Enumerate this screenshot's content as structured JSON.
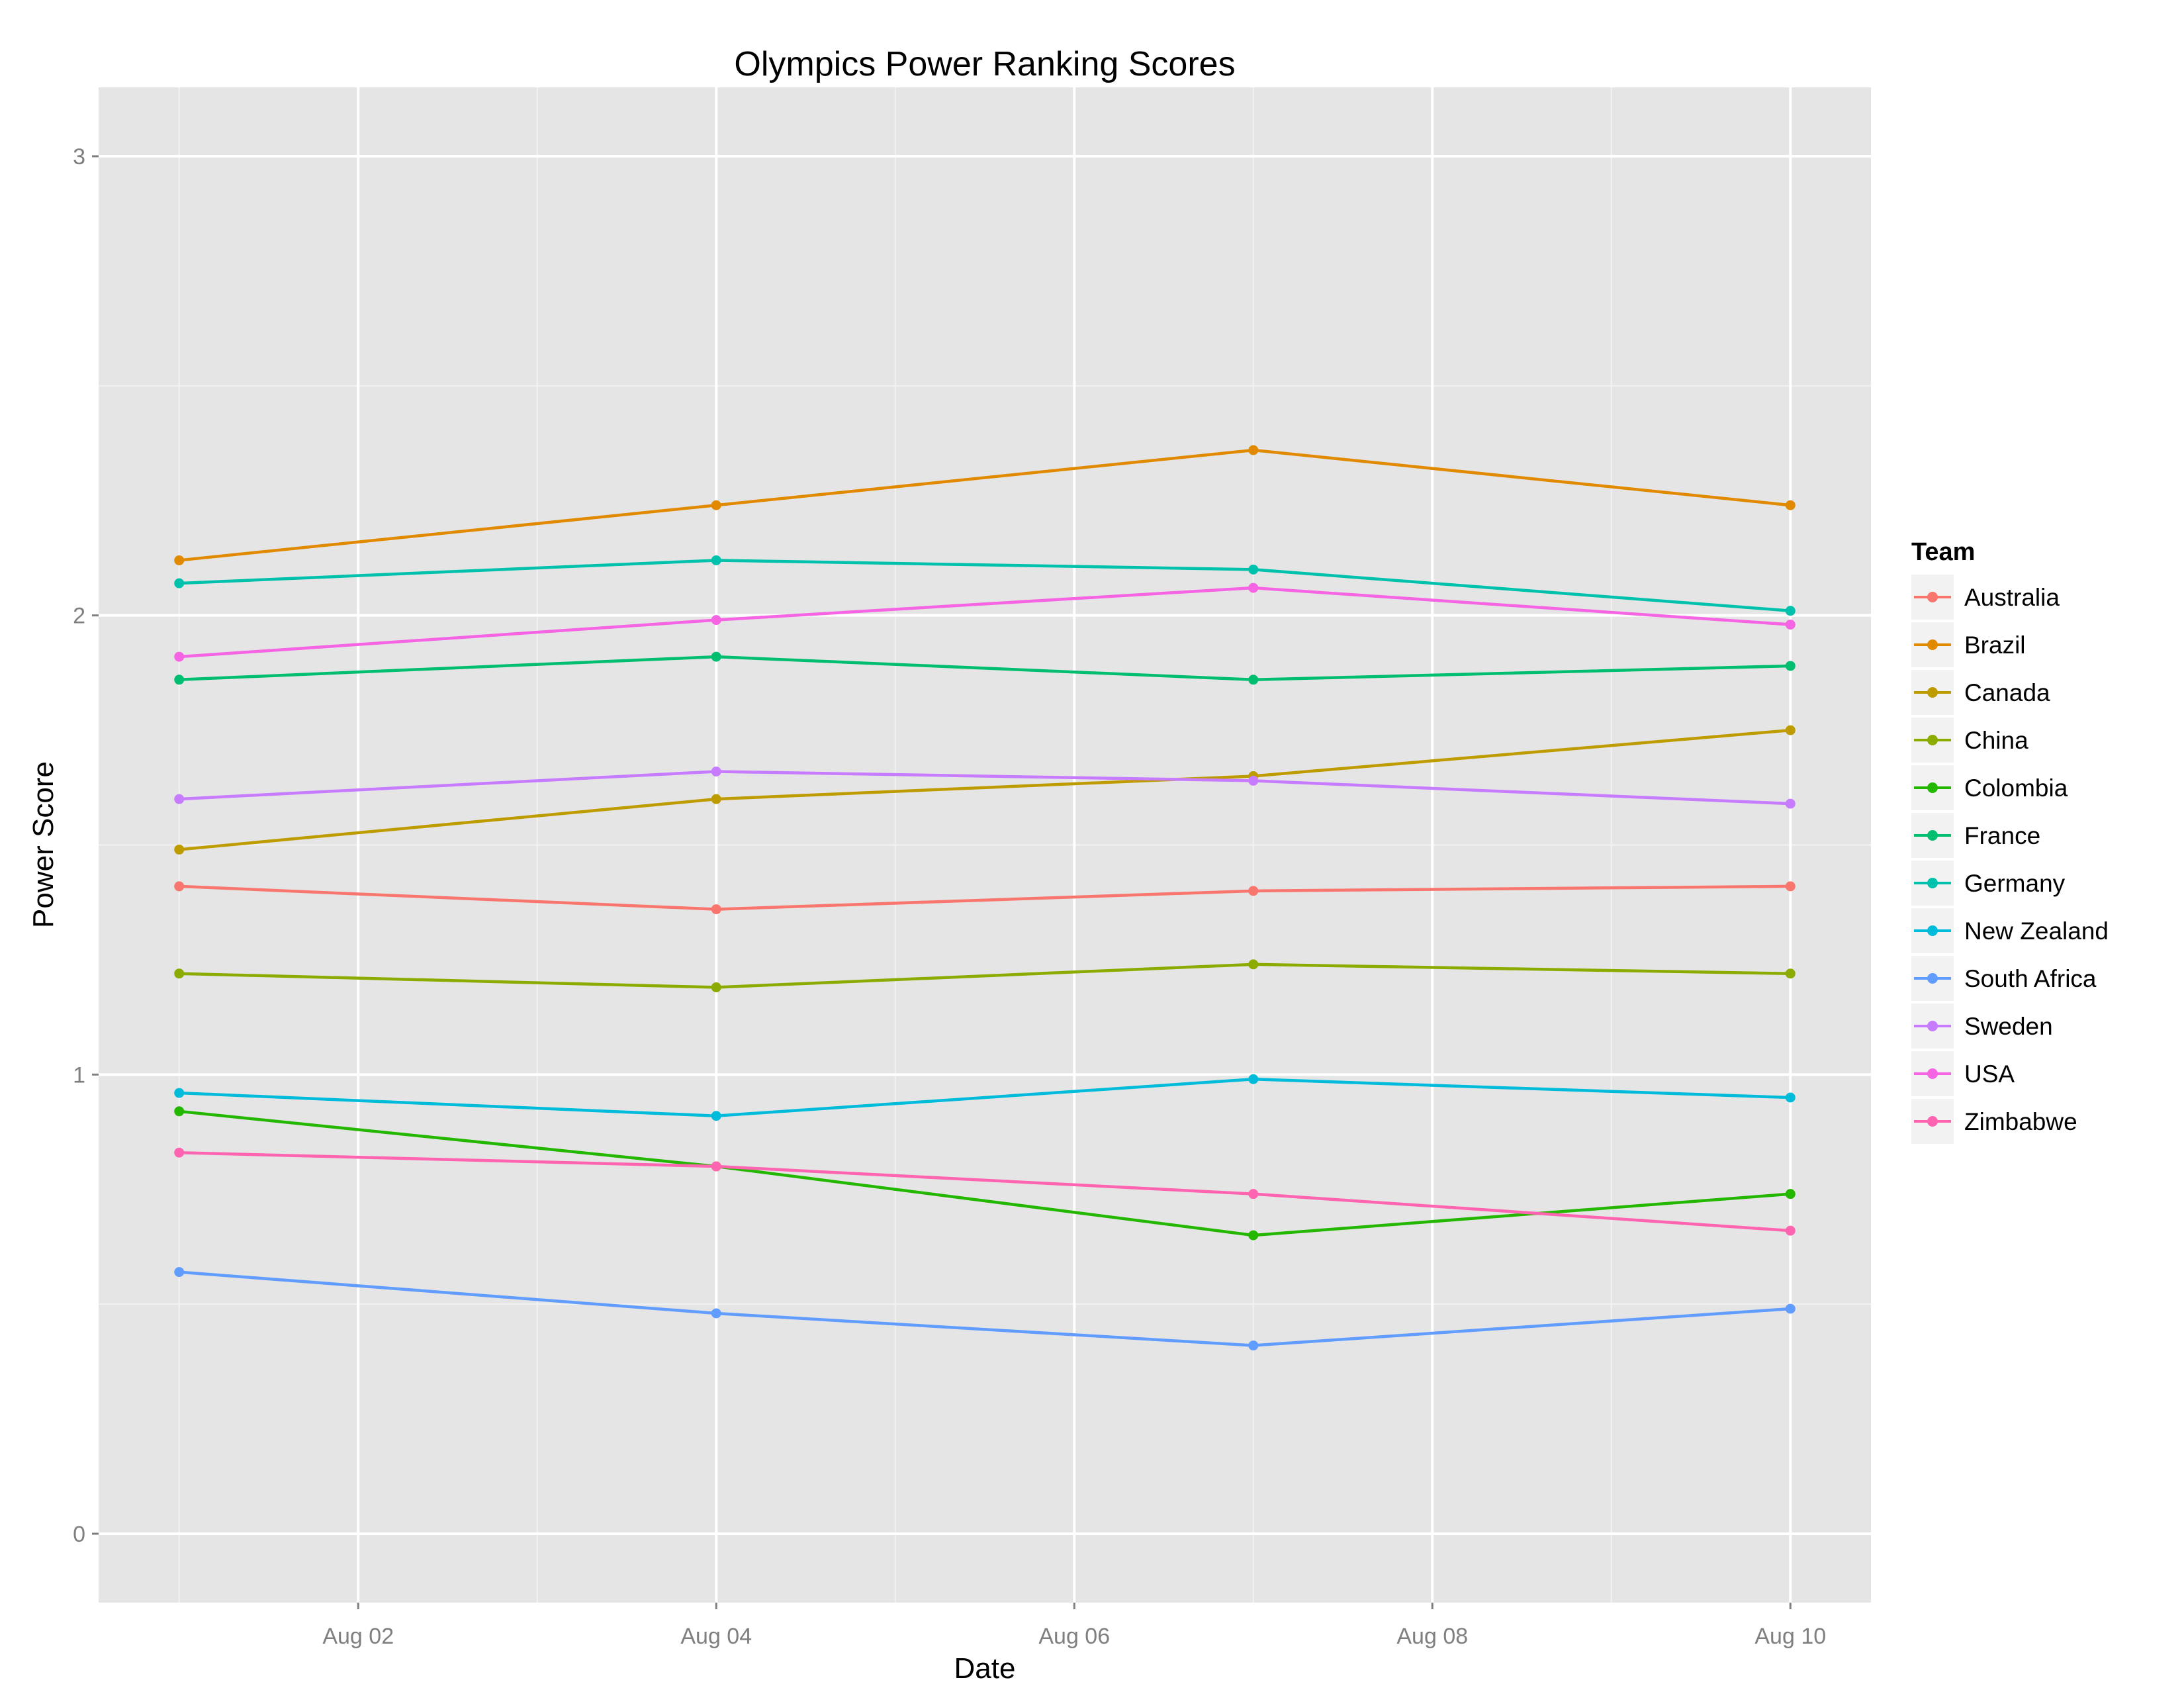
{
  "chart_data": {
    "type": "line",
    "title": "Olympics Power Ranking Scores",
    "xlabel": "Date",
    "ylabel": "Power Score",
    "x": [
      "Aug 01",
      "Aug 04",
      "Aug 07",
      "Aug 10"
    ],
    "x_day": [
      1,
      4,
      7,
      10
    ],
    "xlim_day": [
      0.55,
      10.45
    ],
    "x_ticks": [
      {
        "day": 2,
        "label": "Aug 02"
      },
      {
        "day": 4,
        "label": "Aug 04"
      },
      {
        "day": 6,
        "label": "Aug 06"
      },
      {
        "day": 8,
        "label": "Aug 08"
      },
      {
        "day": 10,
        "label": "Aug 10"
      }
    ],
    "ylim": [
      -0.15,
      3.15
    ],
    "y_ticks": [
      0,
      1,
      2,
      3
    ],
    "grid": true,
    "legend": {
      "title": "Team",
      "position": "right"
    },
    "series": [
      {
        "name": "Australia",
        "color": "#F8766D",
        "values": [
          1.41,
          1.36,
          1.4,
          1.41
        ]
      },
      {
        "name": "Brazil",
        "color": "#E18A00",
        "values": [
          2.12,
          2.24,
          2.36,
          2.24
        ]
      },
      {
        "name": "Canada",
        "color": "#BE9C00",
        "values": [
          1.49,
          1.6,
          1.65,
          1.75
        ]
      },
      {
        "name": "China",
        "color": "#8CAB00",
        "values": [
          1.22,
          1.19,
          1.24,
          1.22
        ]
      },
      {
        "name": "Colombia",
        "color": "#24B700",
        "values": [
          0.92,
          0.8,
          0.65,
          0.74
        ]
      },
      {
        "name": "France",
        "color": "#00BE70",
        "values": [
          1.86,
          1.91,
          1.86,
          1.89
        ]
      },
      {
        "name": "Germany",
        "color": "#00C1AB",
        "values": [
          2.07,
          2.12,
          2.1,
          2.01
        ]
      },
      {
        "name": "New Zealand",
        "color": "#00BBDA",
        "values": [
          0.96,
          0.91,
          0.99,
          0.95
        ]
      },
      {
        "name": "South Africa",
        "color": "#619CFF",
        "values": [
          0.57,
          0.48,
          0.41,
          0.49
        ]
      },
      {
        "name": "Sweden",
        "color": "#C77CFF",
        "values": [
          1.6,
          1.66,
          1.64,
          1.59
        ]
      },
      {
        "name": "USA",
        "color": "#F564E3",
        "values": [
          1.91,
          1.99,
          2.06,
          1.98
        ]
      },
      {
        "name": "Zimbabwe",
        "color": "#FF64B0",
        "values": [
          0.83,
          0.8,
          0.74,
          0.66
        ]
      }
    ]
  }
}
